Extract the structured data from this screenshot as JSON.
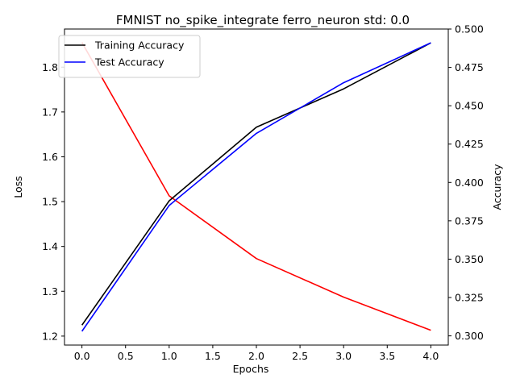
{
  "chart_data": {
    "type": "line",
    "title": "FMNIST no_spike_integrate ferro_neuron std: 0.0",
    "xlabel": "Epochs",
    "ylabel_left": "Loss",
    "ylabel_right": "Accuracy",
    "x": [
      0,
      1,
      2,
      3,
      4
    ],
    "xlim": [
      -0.2,
      4.2
    ],
    "ylim_left": [
      1.18,
      1.885
    ],
    "ylim_right": [
      0.294,
      0.5
    ],
    "xticks": [
      "0.0",
      "0.5",
      "1.0",
      "1.5",
      "2.0",
      "2.5",
      "3.0",
      "3.5",
      "4.0"
    ],
    "yticks_left": [
      "1.2",
      "1.3",
      "1.4",
      "1.5",
      "1.6",
      "1.7",
      "1.8"
    ],
    "yticks_right": [
      "0.300",
      "0.325",
      "0.350",
      "0.375",
      "0.400",
      "0.425",
      "0.450",
      "0.475",
      "0.500"
    ],
    "grid": false,
    "legend_position": "top-left",
    "series": [
      {
        "name": "",
        "axis": "left",
        "color": "#ff0000",
        "values": [
          1.855,
          1.513,
          1.373,
          1.287,
          1.213
        ]
      },
      {
        "name": "Training Accuracy",
        "axis": "right",
        "color": "#000000",
        "values": [
          0.307,
          0.388,
          0.436,
          0.461,
          0.491
        ]
      },
      {
        "name": "Test Accuracy",
        "axis": "right",
        "color": "#0000ff",
        "values": [
          0.303,
          0.385,
          0.432,
          0.465,
          0.491
        ]
      }
    ]
  }
}
